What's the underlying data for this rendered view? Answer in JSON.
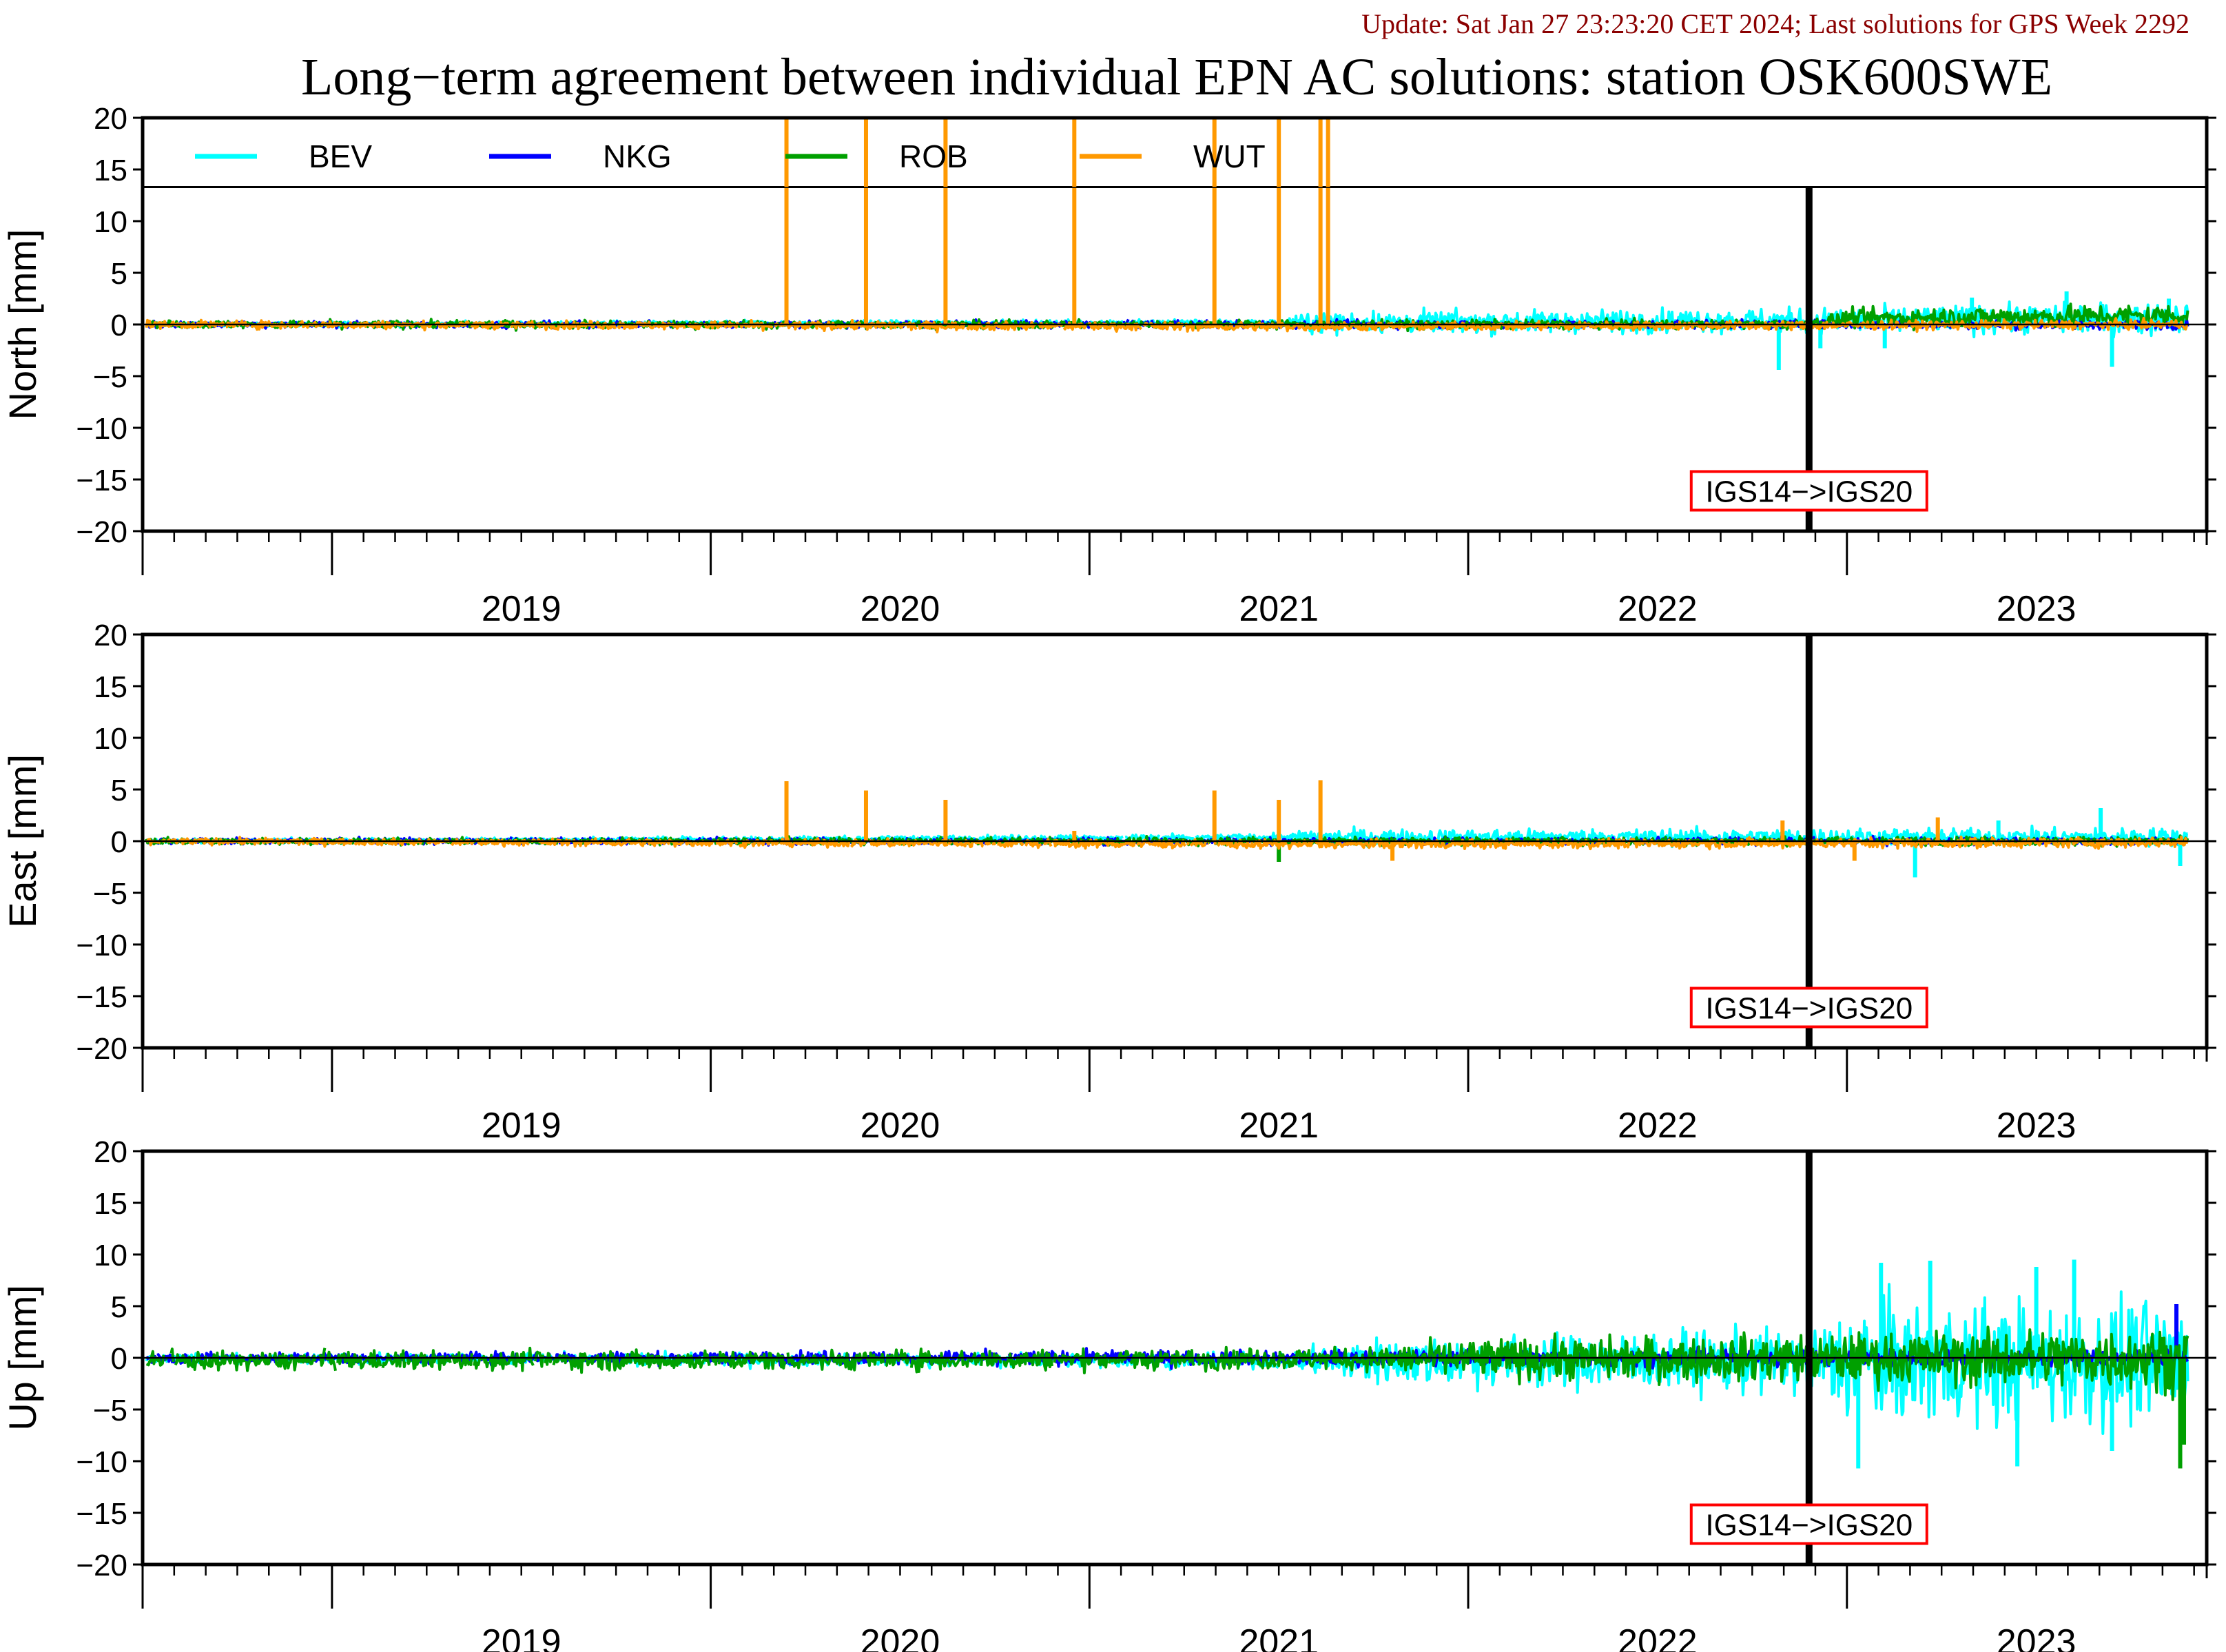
{
  "header": {
    "update_text": "Update: Sat Jan 27 23:23:20 CET 2024; Last solutions for GPS Week 2292",
    "title": "Long−term agreement between individual EPN AC solutions: station OSK600SWE"
  },
  "colors": {
    "BEV": "#00ffff",
    "NKG": "#0000ff",
    "ROB": "#00a000",
    "WUT": "#ff9900",
    "update_text": "#8b0000",
    "annotation_box": "#ff0000"
  },
  "chart_data": [
    {
      "type": "line",
      "ylabel": "North [mm]",
      "ylim": [
        -20,
        20
      ],
      "yticks": [
        20,
        15,
        10,
        5,
        0,
        -5,
        -10,
        -15,
        -20
      ],
      "xlim": [
        2018.5,
        2023.95
      ],
      "xtick_labels": [
        "2019",
        "2020",
        "2021",
        "2022",
        "2023"
      ],
      "legend": {
        "placement": "top",
        "entries": [
          "BEV",
          "NKG",
          "ROB",
          "WUT"
        ]
      },
      "annotation": {
        "text": "IGS14−>IGS20",
        "x": 2022.9
      },
      "series": [
        {
          "name": "BEV",
          "noise": [
            [
              2018.5,
              0.15
            ],
            [
              2021.5,
              0.2
            ],
            [
              2021.6,
              0.7
            ],
            [
              2022.9,
              0.8
            ],
            [
              2023.9,
              1.1
            ]
          ],
          "offset": [
            [
              2018.5,
              0.0
            ],
            [
              2021.6,
              0.2
            ],
            [
              2022.9,
              0.4
            ],
            [
              2023.9,
              0.6
            ]
          ],
          "spikes": [
            [
              2022.82,
              -4.4
            ],
            [
              2022.93,
              -2.3
            ],
            [
              2023.1,
              -2.3
            ],
            [
              2023.7,
              -4.1
            ],
            [
              2023.33,
              2.6
            ],
            [
              2023.58,
              3.2
            ],
            [
              2023.85,
              2.5
            ]
          ]
        },
        {
          "name": "NKG",
          "noise": [
            [
              2018.5,
              0.2
            ],
            [
              2023.9,
              0.3
            ]
          ],
          "offset": [
            [
              2018.5,
              0.0
            ],
            [
              2023.9,
              0.0
            ]
          ],
          "spikes": []
        },
        {
          "name": "ROB",
          "noise": [
            [
              2018.5,
              0.25
            ],
            [
              2022.9,
              0.3
            ],
            [
              2023.0,
              0.6
            ],
            [
              2023.9,
              0.8
            ]
          ],
          "offset": [
            [
              2018.5,
              0.0
            ],
            [
              2022.9,
              0.0
            ],
            [
              2023.0,
              0.6
            ],
            [
              2023.9,
              0.9
            ]
          ],
          "spikes": []
        },
        {
          "name": "WUT",
          "noise": [
            [
              2018.5,
              0.25
            ],
            [
              2023.9,
              0.3
            ]
          ],
          "offset": [
            [
              2018.5,
              0.0
            ],
            [
              2021.6,
              -0.2
            ],
            [
              2023.9,
              0.0
            ]
          ],
          "spikes": [
            [
              2020.2,
              20
            ],
            [
              2020.41,
              20
            ],
            [
              2020.62,
              20
            ],
            [
              2020.96,
              20
            ],
            [
              2021.33,
              20
            ],
            [
              2021.5,
              20
            ],
            [
              2021.61,
              20
            ],
            [
              2021.63,
              20
            ]
          ]
        }
      ]
    },
    {
      "type": "line",
      "ylabel": "East [mm]",
      "ylim": [
        -20,
        20
      ],
      "yticks": [
        20,
        15,
        10,
        5,
        0,
        -5,
        -10,
        -15,
        -20
      ],
      "xlim": [
        2018.5,
        2023.95
      ],
      "xtick_labels": [
        "2019",
        "2020",
        "2021",
        "2022",
        "2023"
      ],
      "annotation": {
        "text": "IGS14−>IGS20",
        "x": 2022.9
      },
      "series": [
        {
          "name": "BEV",
          "noise": [
            [
              2018.5,
              0.15
            ],
            [
              2021.5,
              0.2
            ],
            [
              2021.6,
              0.5
            ],
            [
              2023.9,
              0.6
            ]
          ],
          "offset": [
            [
              2018.5,
              0.0
            ],
            [
              2021.6,
              0.4
            ],
            [
              2023.9,
              0.4
            ]
          ],
          "spikes": [
            [
              2023.18,
              -3.5
            ],
            [
              2023.67,
              3.2
            ],
            [
              2023.88,
              -2.4
            ],
            [
              2023.4,
              2.0
            ]
          ]
        },
        {
          "name": "NKG",
          "noise": [
            [
              2018.5,
              0.2
            ],
            [
              2023.9,
              0.25
            ]
          ],
          "offset": [
            [
              2018.5,
              0.0
            ],
            [
              2023.9,
              0.0
            ]
          ],
          "spikes": []
        },
        {
          "name": "ROB",
          "noise": [
            [
              2018.5,
              0.2
            ],
            [
              2023.9,
              0.3
            ]
          ],
          "offset": [
            [
              2018.5,
              0.0
            ],
            [
              2023.9,
              0.0
            ]
          ],
          "spikes": [
            [
              2021.5,
              -2.0
            ]
          ]
        },
        {
          "name": "WUT",
          "noise": [
            [
              2018.5,
              0.2
            ],
            [
              2023.9,
              0.35
            ]
          ],
          "offset": [
            [
              2018.5,
              0.0
            ],
            [
              2021.6,
              -0.3
            ],
            [
              2023.9,
              -0.1
            ]
          ],
          "spikes": [
            [
              2020.2,
              5.8
            ],
            [
              2020.41,
              4.9
            ],
            [
              2020.62,
              4.0
            ],
            [
              2020.96,
              1.0
            ],
            [
              2021.33,
              4.9
            ],
            [
              2021.5,
              4.0
            ],
            [
              2021.61,
              5.9
            ],
            [
              2021.8,
              -1.9
            ],
            [
              2022.83,
              2.0
            ],
            [
              2023.02,
              -1.9
            ],
            [
              2023.24,
              2.3
            ]
          ]
        }
      ]
    },
    {
      "type": "line",
      "ylabel": "Up [mm]",
      "ylim": [
        -20,
        20
      ],
      "yticks": [
        20,
        15,
        10,
        5,
        0,
        -5,
        -10,
        -15,
        -20
      ],
      "xlim": [
        2018.5,
        2023.95
      ],
      "xtick_labels": [
        "2019",
        "2020",
        "2021",
        "2022",
        "2023"
      ],
      "annotation": {
        "text": "IGS14−>IGS20",
        "x": 2022.9
      },
      "series": [
        {
          "name": "BEV",
          "noise": [
            [
              2018.5,
              0.3
            ],
            [
              2021.5,
              0.5
            ],
            [
              2021.7,
              1.5
            ],
            [
              2022.9,
              2.2
            ],
            [
              2023.0,
              4.0
            ],
            [
              2023.9,
              4.2
            ]
          ],
          "offset": [
            [
              2018.5,
              0.0
            ],
            [
              2023.9,
              -0.5
            ]
          ],
          "spikes": [
            [
              2023.03,
              -10.7
            ],
            [
              2023.09,
              9.2
            ],
            [
              2023.22,
              9.4
            ],
            [
              2023.45,
              -10.5
            ],
            [
              2023.6,
              9.5
            ],
            [
              2023.7,
              -9.0
            ],
            [
              2023.5,
              8.8
            ]
          ]
        },
        {
          "name": "NKG",
          "noise": [
            [
              2018.5,
              0.35
            ],
            [
              2023.9,
              0.6
            ]
          ],
          "offset": [
            [
              2018.5,
              0.0
            ],
            [
              2023.9,
              0.0
            ]
          ],
          "spikes": [
            [
              2023.87,
              5.2
            ]
          ]
        },
        {
          "name": "ROB",
          "noise": [
            [
              2018.5,
              0.6
            ],
            [
              2021.7,
              0.7
            ],
            [
              2022.0,
              1.3
            ],
            [
              2022.9,
              1.6
            ],
            [
              2023.9,
              2.2
            ]
          ],
          "offset": [
            [
              2018.5,
              -0.3
            ],
            [
              2023.9,
              0.0
            ]
          ],
          "spikes": [
            [
              2023.88,
              -10.7
            ],
            [
              2023.89,
              -8.4
            ]
          ]
        }
      ]
    }
  ]
}
